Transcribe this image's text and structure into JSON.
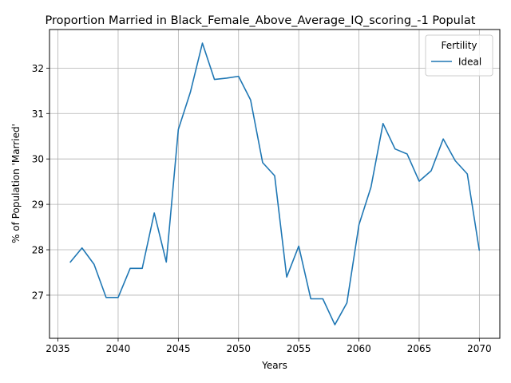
{
  "chart_data": {
    "type": "line",
    "title": "Proportion Married in Black_Female_Above_Average_IQ_scoring_-1 Populat",
    "xlabel": "Years",
    "ylabel": "% of Population 'Married'",
    "xlim": [
      2034.3,
      2071.7
    ],
    "ylim": [
      26.05,
      32.85
    ],
    "xticks": [
      2035,
      2040,
      2045,
      2050,
      2055,
      2060,
      2065,
      2070
    ],
    "yticks": [
      27,
      28,
      29,
      30,
      31,
      32
    ],
    "grid": true,
    "legend": {
      "title": "Fertility",
      "placement": "top-right"
    },
    "series": [
      {
        "name": "Ideal",
        "color": "#1f77b4",
        "x": [
          2036,
          2037,
          2038,
          2039,
          2040,
          2041,
          2042,
          2043,
          2044,
          2045,
          2046,
          2047,
          2048,
          2049,
          2050,
          2051,
          2052,
          2053,
          2054,
          2055,
          2056,
          2057,
          2058,
          2059,
          2060,
          2061,
          2062,
          2063,
          2064,
          2065,
          2066,
          2067,
          2068,
          2069,
          2070
        ],
        "y": [
          27.72,
          28.04,
          27.68,
          26.95,
          26.95,
          27.59,
          27.59,
          28.81,
          27.73,
          30.65,
          31.47,
          32.55,
          31.75,
          31.78,
          31.82,
          31.3,
          29.92,
          29.63,
          27.4,
          28.08,
          26.92,
          26.92,
          26.35,
          26.83,
          28.55,
          29.38,
          30.78,
          30.22,
          30.11,
          29.51,
          29.74,
          30.44,
          29.96,
          29.67,
          27.98
        ]
      }
    ]
  }
}
